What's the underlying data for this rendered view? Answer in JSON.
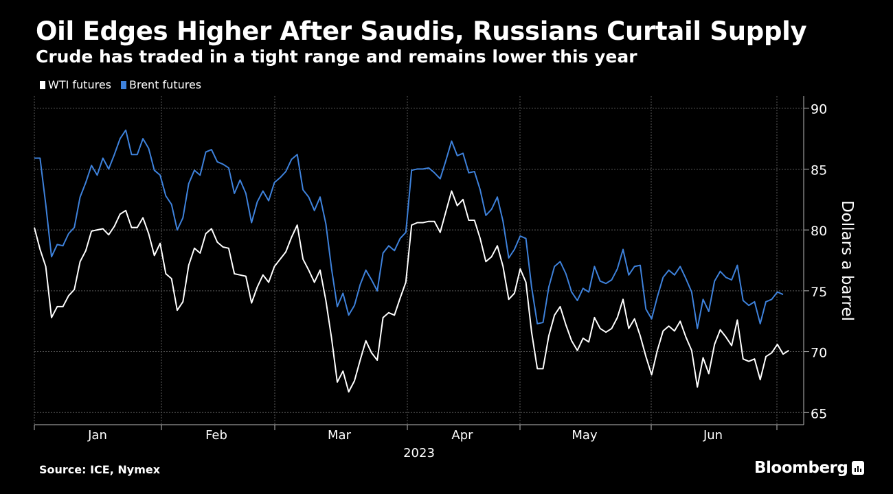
{
  "title": "Oil Edges Higher After Saudis, Russians Curtail Supply",
  "subtitle": "Crude has traded in a tight range and remains lower this year",
  "source": "Source: ICE, Nymex",
  "brand": "Bloomberg",
  "colors": {
    "background": "#000000",
    "wti": "#ffffff",
    "brent": "#3e82dc",
    "grid": "#5a5a5a"
  },
  "legend": [
    {
      "label": "WTI futures",
      "color": "#ffffff"
    },
    {
      "label": "Brent futures",
      "color": "#3e82dc"
    }
  ],
  "chart_data": {
    "type": "line",
    "title": "Oil Edges Higher After Saudis, Russians Curtail Supply",
    "xlabel": "2023",
    "ylabel": "Dollars a barrel",
    "ylim": [
      64,
      91
    ],
    "yticks": [
      65,
      70,
      75,
      80,
      85,
      90
    ],
    "grid": true,
    "legend_position": "top-left",
    "x_month_labels": [
      "Jan",
      "Feb",
      "Mar",
      "Apr",
      "May",
      "Jun"
    ],
    "series": [
      {
        "name": "Brent futures",
        "color": "#3e82dc",
        "values": [
          85.9,
          85.9,
          82.1,
          77.8,
          78.8,
          78.7,
          79.7,
          80.2,
          82.7,
          83.9,
          85.3,
          84.5,
          85.9,
          85.0,
          86.2,
          87.5,
          88.2,
          86.2,
          86.2,
          87.5,
          86.7,
          84.9,
          84.5,
          82.8,
          82.1,
          80.0,
          81.0,
          83.8,
          84.9,
          84.5,
          86.4,
          86.6,
          85.6,
          85.4,
          85.1,
          83.0,
          84.1,
          83.0,
          80.6,
          82.3,
          83.2,
          82.4,
          83.9,
          84.3,
          84.8,
          85.8,
          86.2,
          83.3,
          82.7,
          81.6,
          82.7,
          80.5,
          76.8,
          73.7,
          74.8,
          73.0,
          73.8,
          75.5,
          76.7,
          75.9,
          75.0,
          78.1,
          78.7,
          78.3,
          79.3,
          79.8,
          84.9,
          85.0,
          85.0,
          85.1,
          84.7,
          84.2,
          85.7,
          87.3,
          86.1,
          86.3,
          84.7,
          84.8,
          83.3,
          81.2,
          81.7,
          82.7,
          80.7,
          77.7,
          78.4,
          79.5,
          79.3,
          75.3,
          72.3,
          72.4,
          75.3,
          77.0,
          77.4,
          76.4,
          74.9,
          74.2,
          75.2,
          74.9,
          77.0,
          75.8,
          75.6,
          75.9,
          76.8,
          78.4,
          76.3,
          77.0,
          77.1,
          73.5,
          72.7,
          74.5,
          76.1,
          76.7,
          76.3,
          77.0,
          76.0,
          74.9,
          71.9,
          74.3,
          73.3,
          75.8,
          76.6,
          76.1,
          75.9,
          77.1,
          74.2,
          73.8,
          74.1,
          72.3,
          74.1,
          74.3,
          74.9,
          74.7
        ]
      },
      {
        "name": "WTI futures",
        "color": "#ffffff",
        "values": [
          80.2,
          78.4,
          77.0,
          72.8,
          73.7,
          73.7,
          74.6,
          75.1,
          77.4,
          78.3,
          79.9,
          80.0,
          80.1,
          79.6,
          80.3,
          81.3,
          81.6,
          80.2,
          80.2,
          81.0,
          79.7,
          77.9,
          78.9,
          76.4,
          76.0,
          73.4,
          74.1,
          77.1,
          78.5,
          78.1,
          79.7,
          80.1,
          79.0,
          78.6,
          78.5,
          76.4,
          76.3,
          76.2,
          74.0,
          75.3,
          76.3,
          75.7,
          77.0,
          77.6,
          78.2,
          79.4,
          80.4,
          77.6,
          76.7,
          75.7,
          76.7,
          74.2,
          71.1,
          67.5,
          68.4,
          66.7,
          67.6,
          69.3,
          70.9,
          69.9,
          69.3,
          72.8,
          73.2,
          73.0,
          74.4,
          75.7,
          80.4,
          80.6,
          80.6,
          80.7,
          80.7,
          79.8,
          81.5,
          83.2,
          82.0,
          82.5,
          80.8,
          80.8,
          79.3,
          77.4,
          77.8,
          78.7,
          77.0,
          74.3,
          74.8,
          76.8,
          75.7,
          71.6,
          68.6,
          68.6,
          71.3,
          73.0,
          73.7,
          72.2,
          70.9,
          70.1,
          71.1,
          70.8,
          72.8,
          71.9,
          71.6,
          71.9,
          72.8,
          74.3,
          71.9,
          72.7,
          71.3,
          69.6,
          68.1,
          70.1,
          71.7,
          72.1,
          71.7,
          72.5,
          71.2,
          70.1,
          67.1,
          69.5,
          68.2,
          70.6,
          71.8,
          71.2,
          70.5,
          72.6,
          69.4,
          69.2,
          69.4,
          67.7,
          69.6,
          69.9,
          70.6,
          69.8,
          70.1
        ]
      }
    ]
  },
  "axis": {
    "year_label": "2023",
    "y_title": "Dollars a barrel"
  }
}
